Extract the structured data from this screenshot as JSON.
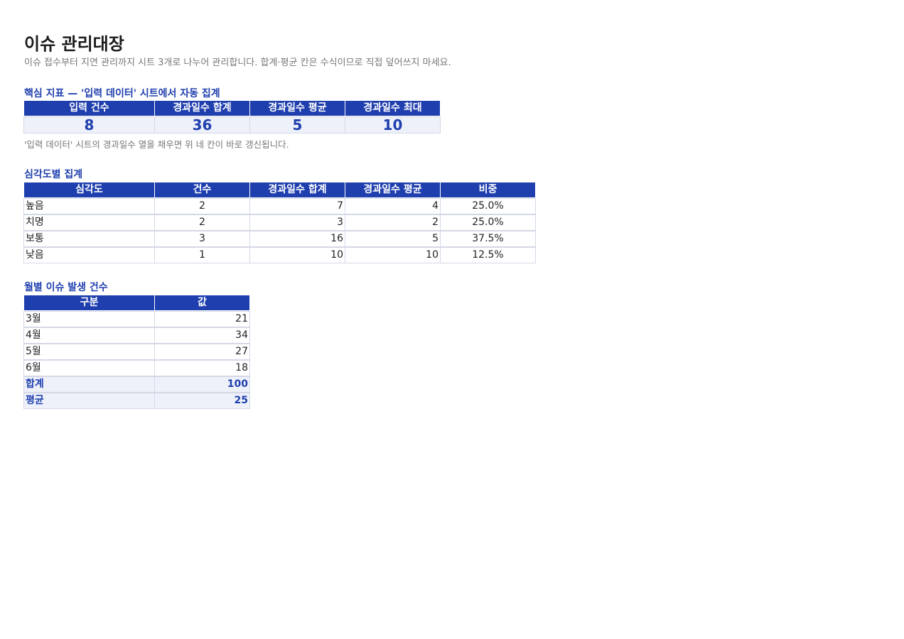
{
  "header": {
    "title": "이슈 관리대장",
    "subtitle": "이슈 접수부터 지연 관리까지 시트 3개로 나누어 관리합니다. 합계·평균 칸은 수식이므로 직접 덮어쓰지 마세요."
  },
  "kpi": {
    "title": "핵심 지표 — '입력 데이터' 시트에서 자동 집계",
    "columns": [
      "입력 건수",
      "경과일수 합계",
      "경과일수 평균",
      "경과일수 최대"
    ],
    "values": [
      8,
      36,
      5,
      10
    ],
    "note": "'입력 데이터' 시트의 경과일수 열을 채우면 위 네 칸이 바로 갱신됩니다."
  },
  "severity": {
    "title": "심각도별 집계",
    "columns": [
      "심각도",
      "건수",
      "경과일수 합계",
      "경과일수 평균",
      "비중"
    ],
    "rows": [
      [
        "높음",
        2,
        7,
        4,
        "25.0%"
      ],
      [
        "치명",
        2,
        3,
        2,
        "25.0%"
      ],
      [
        "보통",
        3,
        16,
        5,
        "37.5%"
      ],
      [
        "낮음",
        1,
        10,
        10,
        "12.5%"
      ]
    ]
  },
  "monthly": {
    "title": "월별 이슈 발생 건수",
    "columns": [
      "구분",
      "값"
    ],
    "rows": [
      [
        "3월",
        21
      ],
      [
        "4월",
        34
      ],
      [
        "5월",
        27
      ],
      [
        "6월",
        18
      ]
    ],
    "summary_rows": [
      [
        "합계",
        100
      ],
      [
        "평균",
        25
      ]
    ]
  }
}
